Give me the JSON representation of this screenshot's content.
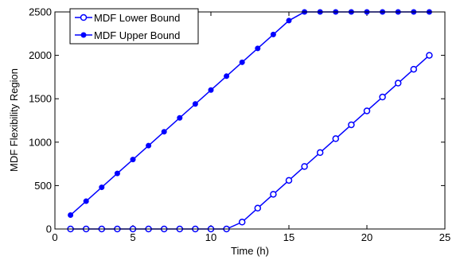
{
  "chart_data": {
    "type": "line",
    "title": "",
    "xlabel": "Time (h)",
    "ylabel": "MDF Flexibility Region",
    "xlim": [
      0,
      25
    ],
    "ylim": [
      0,
      2500
    ],
    "xticks": [
      0,
      5,
      10,
      15,
      20,
      25
    ],
    "yticks": [
      0,
      500,
      1000,
      1500,
      2000,
      2500
    ],
    "grid": false,
    "legend_position": "top-left",
    "x": [
      1,
      2,
      3,
      4,
      5,
      6,
      7,
      8,
      9,
      10,
      11,
      12,
      13,
      14,
      15,
      16,
      17,
      18,
      19,
      20,
      21,
      22,
      23,
      24
    ],
    "series": [
      {
        "name": "MDF Lower Bound",
        "marker": "open-circle",
        "color": "#0000ff",
        "values": [
          0,
          0,
          0,
          0,
          0,
          0,
          0,
          0,
          0,
          0,
          0,
          80,
          240,
          400,
          560,
          720,
          880,
          1040,
          1200,
          1360,
          1520,
          1680,
          1840,
          2000
        ]
      },
      {
        "name": "MDF Upper Bound",
        "marker": "filled-circle",
        "color": "#0000ff",
        "values": [
          160,
          320,
          480,
          640,
          800,
          960,
          1120,
          1280,
          1440,
          1600,
          1760,
          1920,
          2080,
          2240,
          2400,
          2500,
          2500,
          2500,
          2500,
          2500,
          2500,
          2500,
          2500,
          2500
        ]
      }
    ]
  }
}
